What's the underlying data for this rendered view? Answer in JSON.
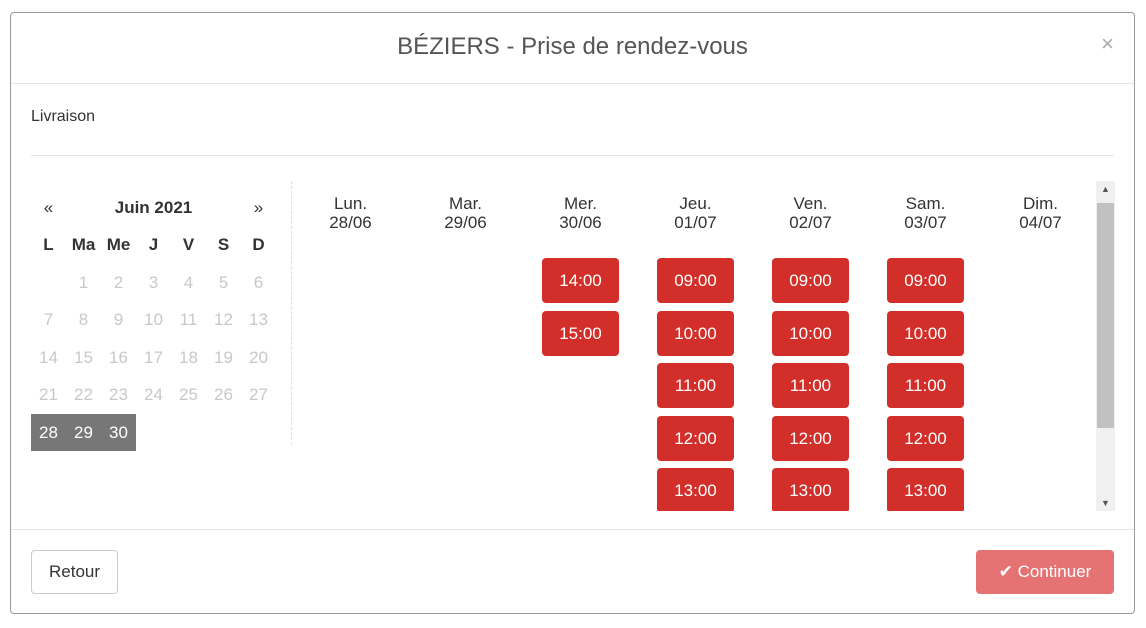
{
  "title": "BÉZIERS - Prise de rendez-vous",
  "close": "×",
  "subtitle": "Livraison",
  "calendar": {
    "prev": "«",
    "next": "»",
    "month": "Juin 2021",
    "weekdays": [
      "L",
      "Ma",
      "Me",
      "J",
      "V",
      "S",
      "D"
    ],
    "weeks": [
      [
        "",
        "1",
        "2",
        "3",
        "4",
        "5",
        "6"
      ],
      [
        "7",
        "8",
        "9",
        "10",
        "11",
        "12",
        "13"
      ],
      [
        "14",
        "15",
        "16",
        "17",
        "18",
        "19",
        "20"
      ],
      [
        "21",
        "22",
        "23",
        "24",
        "25",
        "26",
        "27"
      ],
      [
        "28",
        "29",
        "30",
        "",
        "",
        "",
        ""
      ]
    ],
    "selected": [
      "28",
      "29",
      "30"
    ]
  },
  "days": [
    {
      "name": "Lun.",
      "date": "28/06",
      "slots": []
    },
    {
      "name": "Mar.",
      "date": "29/06",
      "slots": []
    },
    {
      "name": "Mer.",
      "date": "30/06",
      "slots": [
        "14:00",
        "15:00"
      ]
    },
    {
      "name": "Jeu.",
      "date": "01/07",
      "slots": [
        "09:00",
        "10:00",
        "11:00",
        "12:00",
        "13:00"
      ],
      "more": true
    },
    {
      "name": "Ven.",
      "date": "02/07",
      "slots": [
        "09:00",
        "10:00",
        "11:00",
        "12:00",
        "13:00"
      ],
      "more": true
    },
    {
      "name": "Sam.",
      "date": "03/07",
      "slots": [
        "09:00",
        "10:00",
        "11:00",
        "12:00",
        "13:00"
      ],
      "more": true
    },
    {
      "name": "Dim.",
      "date": "04/07",
      "slots": []
    }
  ],
  "buttons": {
    "back": "Retour",
    "continue": "Continuer",
    "continue_icon": "check-icon"
  },
  "colors": {
    "slot": "#d32f2a",
    "continue": "#e57373",
    "selected_day": "#777777"
  }
}
